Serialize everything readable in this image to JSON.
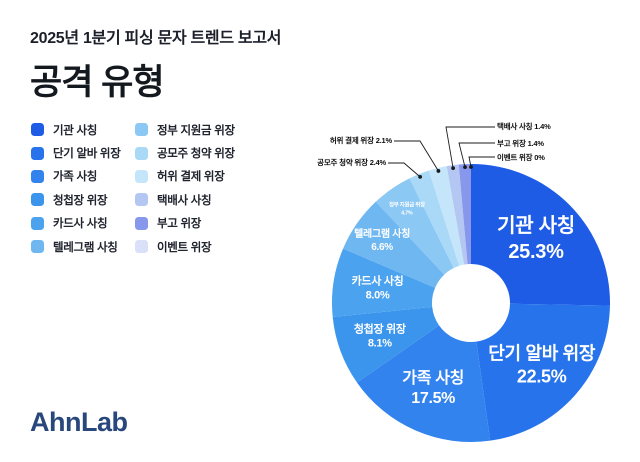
{
  "report": {
    "subtitle": "2025년 1분기 피싱 문자 트렌드 보고서",
    "title": "공격 유형",
    "logo_text": "AhnLab"
  },
  "colors": {
    "background": "#ffffff",
    "text_dark": "#14181f",
    "leader_line": "#1b1b1b",
    "logo_navy": "#28477c",
    "accent_blue": "#1e5ce6"
  },
  "chart_data": {
    "type": "pie",
    "donut": true,
    "title": "공격 유형",
    "unit": "%",
    "legend_position": "left",
    "start_angle_deg": 0,
    "direction": "clockwise",
    "categories": [
      "기관 사칭",
      "단기 알바 위장",
      "가족 사칭",
      "청첩장 위장",
      "카드사 사칭",
      "텔레그램 사칭",
      "정부 지원금 위장",
      "공모주 청약 위장",
      "허위 결제 위장",
      "택배사 사칭",
      "부고 위장",
      "이벤트 위장"
    ],
    "values": [
      25.3,
      22.5,
      17.5,
      8.1,
      8.0,
      6.6,
      4.7,
      2.4,
      2.1,
      1.4,
      1.4,
      0
    ],
    "display_percents": [
      "25.3%",
      "22.5%",
      "17.5%",
      "8.1%",
      "8.0%",
      "6.6%",
      "4.7%",
      "2.4%",
      "2.1%",
      "1.4%",
      "1.4%",
      "0%"
    ],
    "colors": [
      "#1e5ce6",
      "#2673ec",
      "#3383ee",
      "#3c95ec",
      "#4ba3ef",
      "#6fb7f1",
      "#8cc8f4",
      "#a9d9f7",
      "#c5e6fa",
      "#b4c7f3",
      "#8697ec",
      "#d9e0f8"
    ]
  }
}
